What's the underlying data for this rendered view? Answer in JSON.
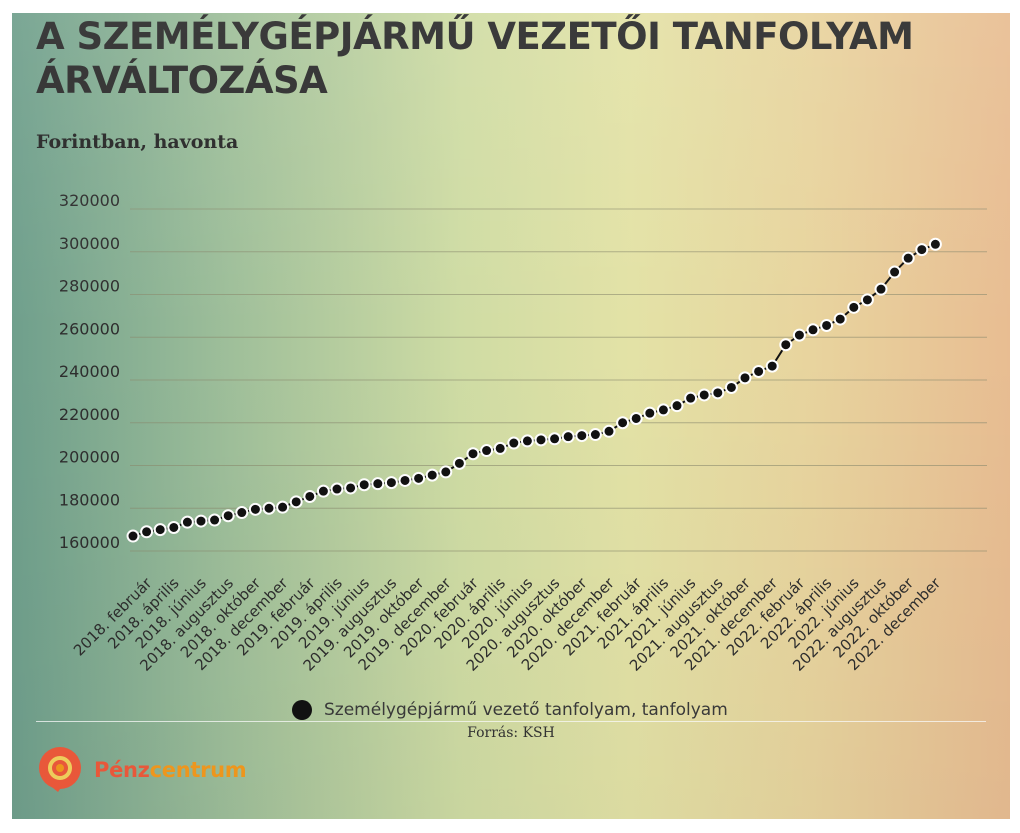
{
  "header": {
    "title": "A SZEMÉLYGÉPJÁRMŰ VEZETŐI TANFOLYAM ÁRVÁLTOZÁSA",
    "subtitle": "Forintban, havonta"
  },
  "legend": {
    "label": "Személygépjármű vezető tanfolyam, tanfolyam"
  },
  "footer": {
    "source": "Forrás: KSH",
    "logo_part1": "Pénz",
    "logo_part2": "centrum"
  },
  "colors": {
    "line": "#111111",
    "marker_stroke": "#ffffff",
    "grid": "#8a8a6e",
    "logo_red": "#ef5a3c",
    "logo_orange": "#f49a1e"
  },
  "chart_data": {
    "type": "line",
    "title": "A SZEMÉLYGÉPJÁRMŰ VEZETŐI TANFOLYAM ÁRVÁLTOZÁSA",
    "subtitle": "Forintban, havonta",
    "xlabel": "",
    "ylabel": "",
    "ylim": [
      160000,
      320000
    ],
    "yticks": [
      160000,
      180000,
      200000,
      220000,
      240000,
      260000,
      280000,
      300000,
      320000
    ],
    "grid": true,
    "legend_position": "bottom",
    "x_tick_labels": [
      "2018. február",
      "2018. április",
      "2018. június",
      "2018. augusztus",
      "2018. október",
      "2018. december",
      "2019. február",
      "2019. április",
      "2019. június",
      "2019. augusztus",
      "2019. október",
      "2019. december",
      "2020. február",
      "2020. április",
      "2020. június",
      "2020. augusztus",
      "2020. október",
      "2020. december",
      "2021. február",
      "2021. április",
      "2021. június",
      "2021. augusztus",
      "2021. október",
      "2021. december",
      "2022. február",
      "2022. április",
      "2022. június",
      "2022. augusztus",
      "2022. október",
      "2022. december"
    ],
    "x": [
      "2018. január",
      "2018. február",
      "2018. március",
      "2018. április",
      "2018. május",
      "2018. június",
      "2018. július",
      "2018. augusztus",
      "2018. szeptember",
      "2018. október",
      "2018. november",
      "2018. december",
      "2019. január",
      "2019. február",
      "2019. március",
      "2019. április",
      "2019. május",
      "2019. június",
      "2019. július",
      "2019. augusztus",
      "2019. szeptember",
      "2019. október",
      "2019. november",
      "2019. december",
      "2020. január",
      "2020. február",
      "2020. március",
      "2020. április",
      "2020. május",
      "2020. június",
      "2020. július",
      "2020. augusztus",
      "2020. szeptember",
      "2020. október",
      "2020. november",
      "2020. december",
      "2021. január",
      "2021. február",
      "2021. március",
      "2021. április",
      "2021. május",
      "2021. június",
      "2021. július",
      "2021. augusztus",
      "2021. szeptember",
      "2021. október",
      "2021. november",
      "2021. december",
      "2022. január",
      "2022. február",
      "2022. március",
      "2022. április",
      "2022. május",
      "2022. június",
      "2022. július",
      "2022. augusztus",
      "2022. szeptember",
      "2022. október",
      "2022. november",
      "2022. december"
    ],
    "series": [
      {
        "name": "Személygépjármű vezető tanfolyam, tanfolyam",
        "values": [
          167000,
          169000,
          170000,
          171000,
          173500,
          174000,
          174500,
          176500,
          178000,
          179500,
          180000,
          180500,
          183000,
          185500,
          188000,
          189000,
          189500,
          191000,
          191500,
          192000,
          193000,
          194000,
          195500,
          197000,
          201000,
          205500,
          207000,
          208000,
          210500,
          211500,
          212000,
          212500,
          213500,
          214000,
          214500,
          216000,
          220000,
          222000,
          224500,
          226000,
          228000,
          231500,
          233000,
          234000,
          236500,
          241000,
          244000,
          246500,
          256500,
          261000,
          263500,
          265500,
          268500,
          274000,
          277500,
          282500,
          290500,
          297000,
          301000,
          303500
        ]
      }
    ]
  }
}
